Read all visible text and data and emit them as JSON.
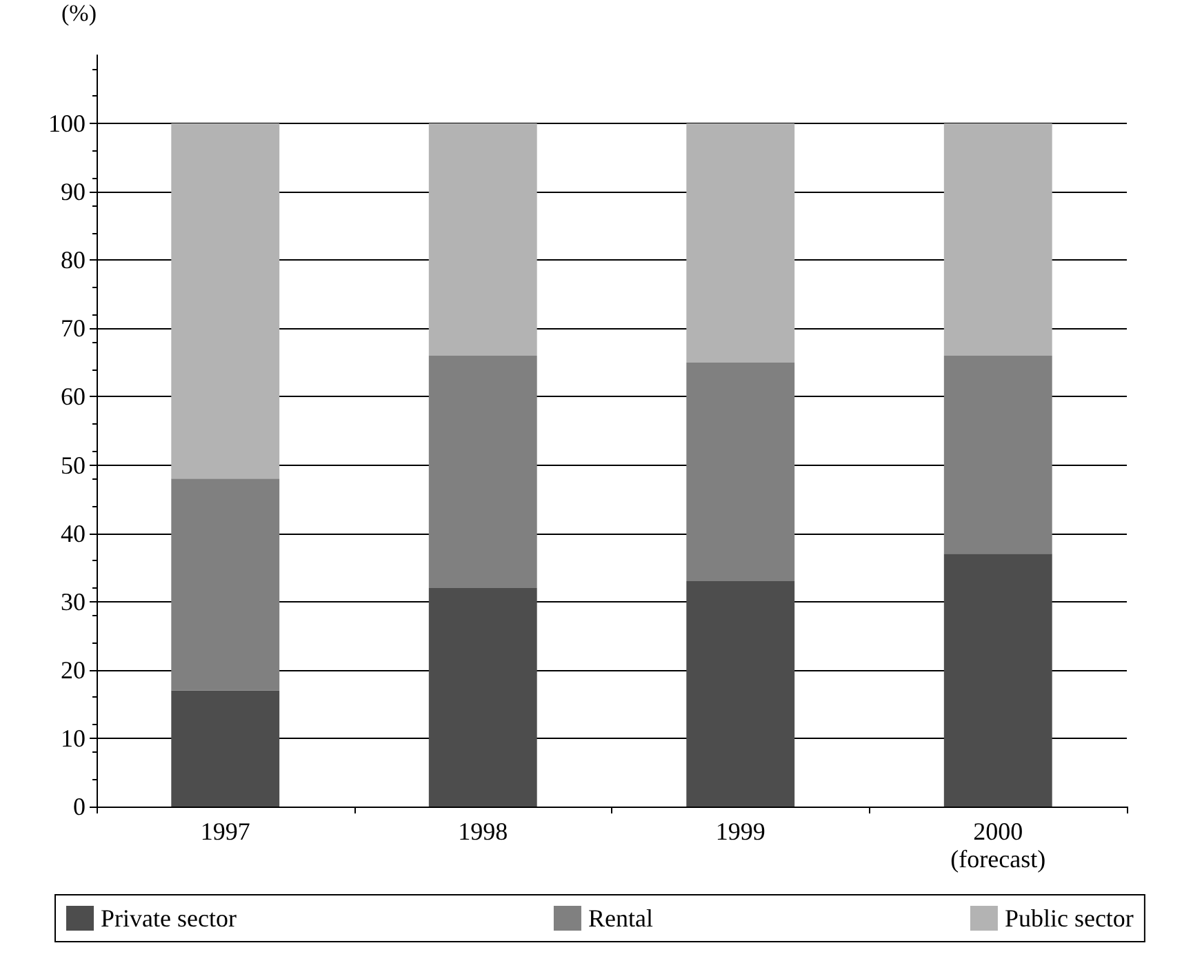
{
  "chart_data": {
    "type": "bar",
    "stacked": true,
    "ylabel": "(%)",
    "categories": [
      "1997",
      "1998",
      "1999",
      "2000\n(forecast)"
    ],
    "series": [
      {
        "name": "Private sector",
        "color": "#4d4d4d",
        "values": [
          17,
          32,
          33,
          37
        ]
      },
      {
        "name": "Rental",
        "color": "#808080",
        "values": [
          31,
          34,
          32,
          29
        ]
      },
      {
        "name": "Public sector",
        "color": "#b3b3b3",
        "values": [
          52,
          34,
          35,
          34
        ]
      }
    ],
    "ylim": [
      0,
      110
    ],
    "yticks": [
      0,
      10,
      20,
      30,
      40,
      50,
      60,
      70,
      80,
      90,
      100
    ],
    "grid": "y",
    "legend": "bottom"
  }
}
